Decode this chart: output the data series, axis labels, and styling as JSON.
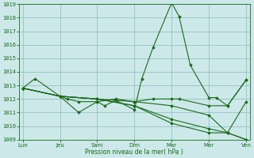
{
  "xlabel": "Pression niveau de la mer( hPa )",
  "ylim": [
    1009,
    1019
  ],
  "yticks": [
    1009,
    1010,
    1011,
    1012,
    1013,
    1014,
    1015,
    1016,
    1017,
    1018,
    1019
  ],
  "x_labels": [
    "Lun",
    "Jeu",
    "Sam",
    "Dim",
    "Mar",
    "Mer",
    "Ven"
  ],
  "x_positions": [
    0,
    1,
    2,
    3,
    4,
    5,
    6
  ],
  "background_color": "#cce8e8",
  "grid_color": "#88bbbb",
  "line_color": "#1a6b1a",
  "line_data": [
    {
      "x": [
        0,
        0.33,
        1.0,
        1.2,
        1.5,
        2.0,
        2.2,
        2.5,
        3.0,
        3.2,
        3.5,
        4.0,
        4.2,
        4.5,
        5.0,
        5.2,
        5.5,
        6.0
      ],
      "y": [
        1012.8,
        1013.5,
        1012.2,
        1012.0,
        1011.8,
        1011.8,
        1011.5,
        1011.9,
        1011.2,
        1013.5,
        1015.8,
        1019.1,
        1018.1,
        1014.5,
        1012.1,
        1012.1,
        1011.5,
        1013.4
      ]
    },
    {
      "x": [
        0,
        1.0,
        1.5,
        2.0,
        2.5,
        3.0,
        3.5,
        4.0,
        4.2,
        5.0,
        5.5,
        6.0
      ],
      "y": [
        1012.8,
        1012.2,
        1011.0,
        1011.8,
        1012.0,
        1011.8,
        1012.0,
        1012.0,
        1012.0,
        1011.5,
        1011.5,
        1013.4
      ]
    },
    {
      "x": [
        0,
        1.0,
        2.0,
        3.0,
        4.0,
        5.0,
        5.5,
        6.0
      ],
      "y": [
        1012.8,
        1012.2,
        1012.0,
        1011.8,
        1011.5,
        1010.8,
        1009.5,
        1009.0
      ]
    },
    {
      "x": [
        0,
        1.0,
        2.0,
        3.0,
        4.0,
        5.0,
        5.5,
        6.0
      ],
      "y": [
        1012.8,
        1012.2,
        1012.0,
        1011.5,
        1010.5,
        1009.8,
        1009.5,
        1009.0
      ]
    },
    {
      "x": [
        0,
        1.0,
        2.0,
        3.0,
        4.0,
        5.0,
        5.5,
        6.0
      ],
      "y": [
        1012.8,
        1012.2,
        1012.0,
        1011.5,
        1010.2,
        1009.5,
        1009.5,
        1011.8
      ]
    }
  ],
  "figsize": [
    3.2,
    2.0
  ],
  "dpi": 100
}
